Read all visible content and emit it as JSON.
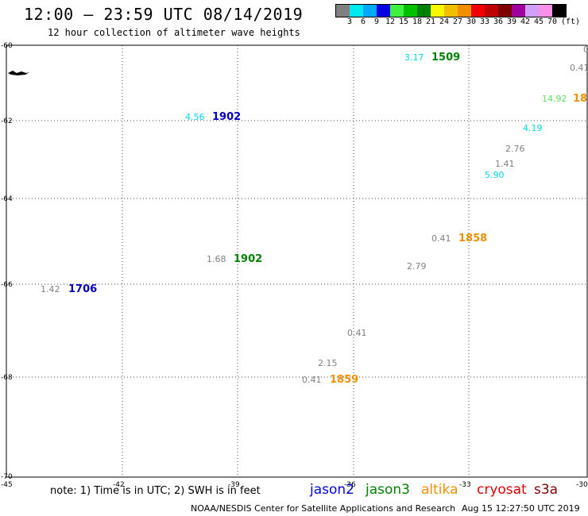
{
  "header": {
    "title": "12:00 – 23:59 UTC 08/14/2019",
    "subtitle": "12 hour collection of altimeter wave heights"
  },
  "legend": {
    "unit": "(ft)",
    "items": [
      {
        "label": "3",
        "color": "#808080"
      },
      {
        "label": "6",
        "color": "#00e8f0"
      },
      {
        "label": "9",
        "color": "#00a8f8"
      },
      {
        "label": "12",
        "color": "#0000e0"
      },
      {
        "label": "15",
        "color": "#40f040"
      },
      {
        "label": "18",
        "color": "#00c000"
      },
      {
        "label": "21",
        "color": "#008000"
      },
      {
        "label": "24",
        "color": "#f8f800"
      },
      {
        "label": "27",
        "color": "#f0c000"
      },
      {
        "label": "30",
        "color": "#f09000"
      },
      {
        "label": "33",
        "color": "#f00000"
      },
      {
        "label": "36",
        "color": "#c00000"
      },
      {
        "label": "39",
        "color": "#800000"
      },
      {
        "label": "42",
        "color": "#a000a0"
      },
      {
        "label": "45",
        "color": "#d0a0f8"
      },
      {
        "label": "70",
        "color": "#f890e8"
      },
      {
        "label": "",
        "color": "#000000"
      }
    ]
  },
  "map": {
    "lon_range": [
      -45,
      -30
    ],
    "lat_range": [
      -70,
      -60
    ],
    "lon_ticks": [
      "-45",
      "-42",
      "-39",
      "-36",
      "-33",
      "-30"
    ],
    "lat_ticks": [
      "-60",
      "-62",
      "-64",
      "-66",
      "-68",
      "-70"
    ],
    "grid": true,
    "values": [
      {
        "text": "3.17",
        "color": "#00d8e8"
      },
      {
        "text": "0",
        "color": "#808080"
      },
      {
        "text": "0.41",
        "color": "#808080"
      },
      {
        "text": "14.92",
        "color": "#60e060"
      },
      {
        "text": "4.56",
        "color": "#00d8e8"
      },
      {
        "text": "4.19",
        "color": "#00d8e8"
      },
      {
        "text": "2.76",
        "color": "#808080"
      },
      {
        "text": "1.41",
        "color": "#808080"
      },
      {
        "text": "5.90",
        "color": "#00d8e8"
      },
      {
        "text": "0.41",
        "color": "#808080"
      },
      {
        "text": "1.68",
        "color": "#808080"
      },
      {
        "text": "2.79",
        "color": "#808080"
      },
      {
        "text": "1.42",
        "color": "#808080"
      },
      {
        "text": "0.41",
        "color": "#808080"
      },
      {
        "text": "2.15",
        "color": "#808080"
      },
      {
        "text": "0.41",
        "color": "#808080"
      }
    ],
    "pass_times": [
      {
        "text": "1509",
        "color": "#008000"
      },
      {
        "text": "18",
        "color": "#f09000"
      },
      {
        "text": "1902",
        "color": "#0000c0"
      },
      {
        "text": "1858",
        "color": "#f09000"
      },
      {
        "text": "1902",
        "color": "#008000"
      },
      {
        "text": "1706",
        "color": "#0000c0"
      },
      {
        "text": "1859",
        "color": "#f09000"
      }
    ]
  },
  "note": "note: 1) Time is in UTC; 2) SWH is in feet",
  "satellites": [
    {
      "name": "jason2",
      "color": "#0000e0"
    },
    {
      "name": "jason3",
      "color": "#008000"
    },
    {
      "name": "altika",
      "color": "#f09000"
    },
    {
      "name": "cryosat",
      "color": "#e00000"
    },
    {
      "name": "s3a",
      "color": "#800000"
    }
  ],
  "footer": {
    "credit": "NOAA/NESDIS Center for Satellite Applications and Research",
    "timestamp": "Aug 15 12:27:50 UTC 2019"
  }
}
